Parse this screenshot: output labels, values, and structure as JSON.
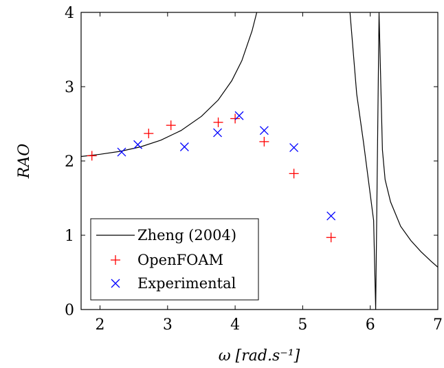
{
  "chart_data": {
    "type": "line",
    "title": "",
    "xlabel": "ω [rad.s⁻¹]",
    "ylabel": "RAO",
    "xlim": [
      1.72,
      7.0
    ],
    "ylim": [
      0,
      4
    ],
    "xticks": [
      2,
      3,
      4,
      5,
      6,
      7
    ],
    "yticks": [
      0,
      1,
      2,
      3,
      4
    ],
    "grid": false,
    "legend_position": "bottom-left",
    "series": [
      {
        "name": "Zheng (2004)",
        "kind": "line",
        "color": "#000000",
        "segments": [
          [
            [
              1.72,
              2.06
            ],
            [
              2.0,
              2.09
            ],
            [
              2.3,
              2.13
            ],
            [
              2.6,
              2.19
            ],
            [
              2.9,
              2.28
            ],
            [
              3.2,
              2.41
            ],
            [
              3.5,
              2.6
            ],
            [
              3.75,
              2.82
            ],
            [
              3.95,
              3.08
            ],
            [
              4.1,
              3.35
            ],
            [
              4.25,
              3.75
            ],
            [
              4.32,
              4.0
            ]
          ],
          [
            [
              5.7,
              4.0
            ],
            [
              5.8,
              2.9
            ],
            [
              5.9,
              2.25
            ],
            [
              6.0,
              1.55
            ],
            [
              6.05,
              1.2
            ],
            [
              6.08,
              0.0
            ],
            [
              6.13,
              4.0
            ],
            [
              6.18,
              2.15
            ],
            [
              6.22,
              1.75
            ],
            [
              6.3,
              1.45
            ],
            [
              6.45,
              1.12
            ],
            [
              6.6,
              0.93
            ],
            [
              6.75,
              0.78
            ],
            [
              6.9,
              0.65
            ],
            [
              7.0,
              0.57
            ]
          ]
        ]
      },
      {
        "name": "OpenFOAM",
        "kind": "scatter",
        "marker": "plus",
        "color": "#ff0000",
        "x": [
          1.88,
          2.72,
          3.05,
          3.75,
          4.0,
          4.43,
          4.87,
          5.42
        ],
        "y": [
          2.07,
          2.37,
          2.48,
          2.52,
          2.57,
          2.26,
          1.83,
          0.97
        ]
      },
      {
        "name": "Experimental",
        "kind": "scatter",
        "marker": "cross",
        "color": "#0000ff",
        "x": [
          2.32,
          2.56,
          3.25,
          3.74,
          4.06,
          4.43,
          4.87,
          5.42
        ],
        "y": [
          2.12,
          2.22,
          2.19,
          2.38,
          2.61,
          2.41,
          2.18,
          1.26
        ]
      }
    ]
  }
}
